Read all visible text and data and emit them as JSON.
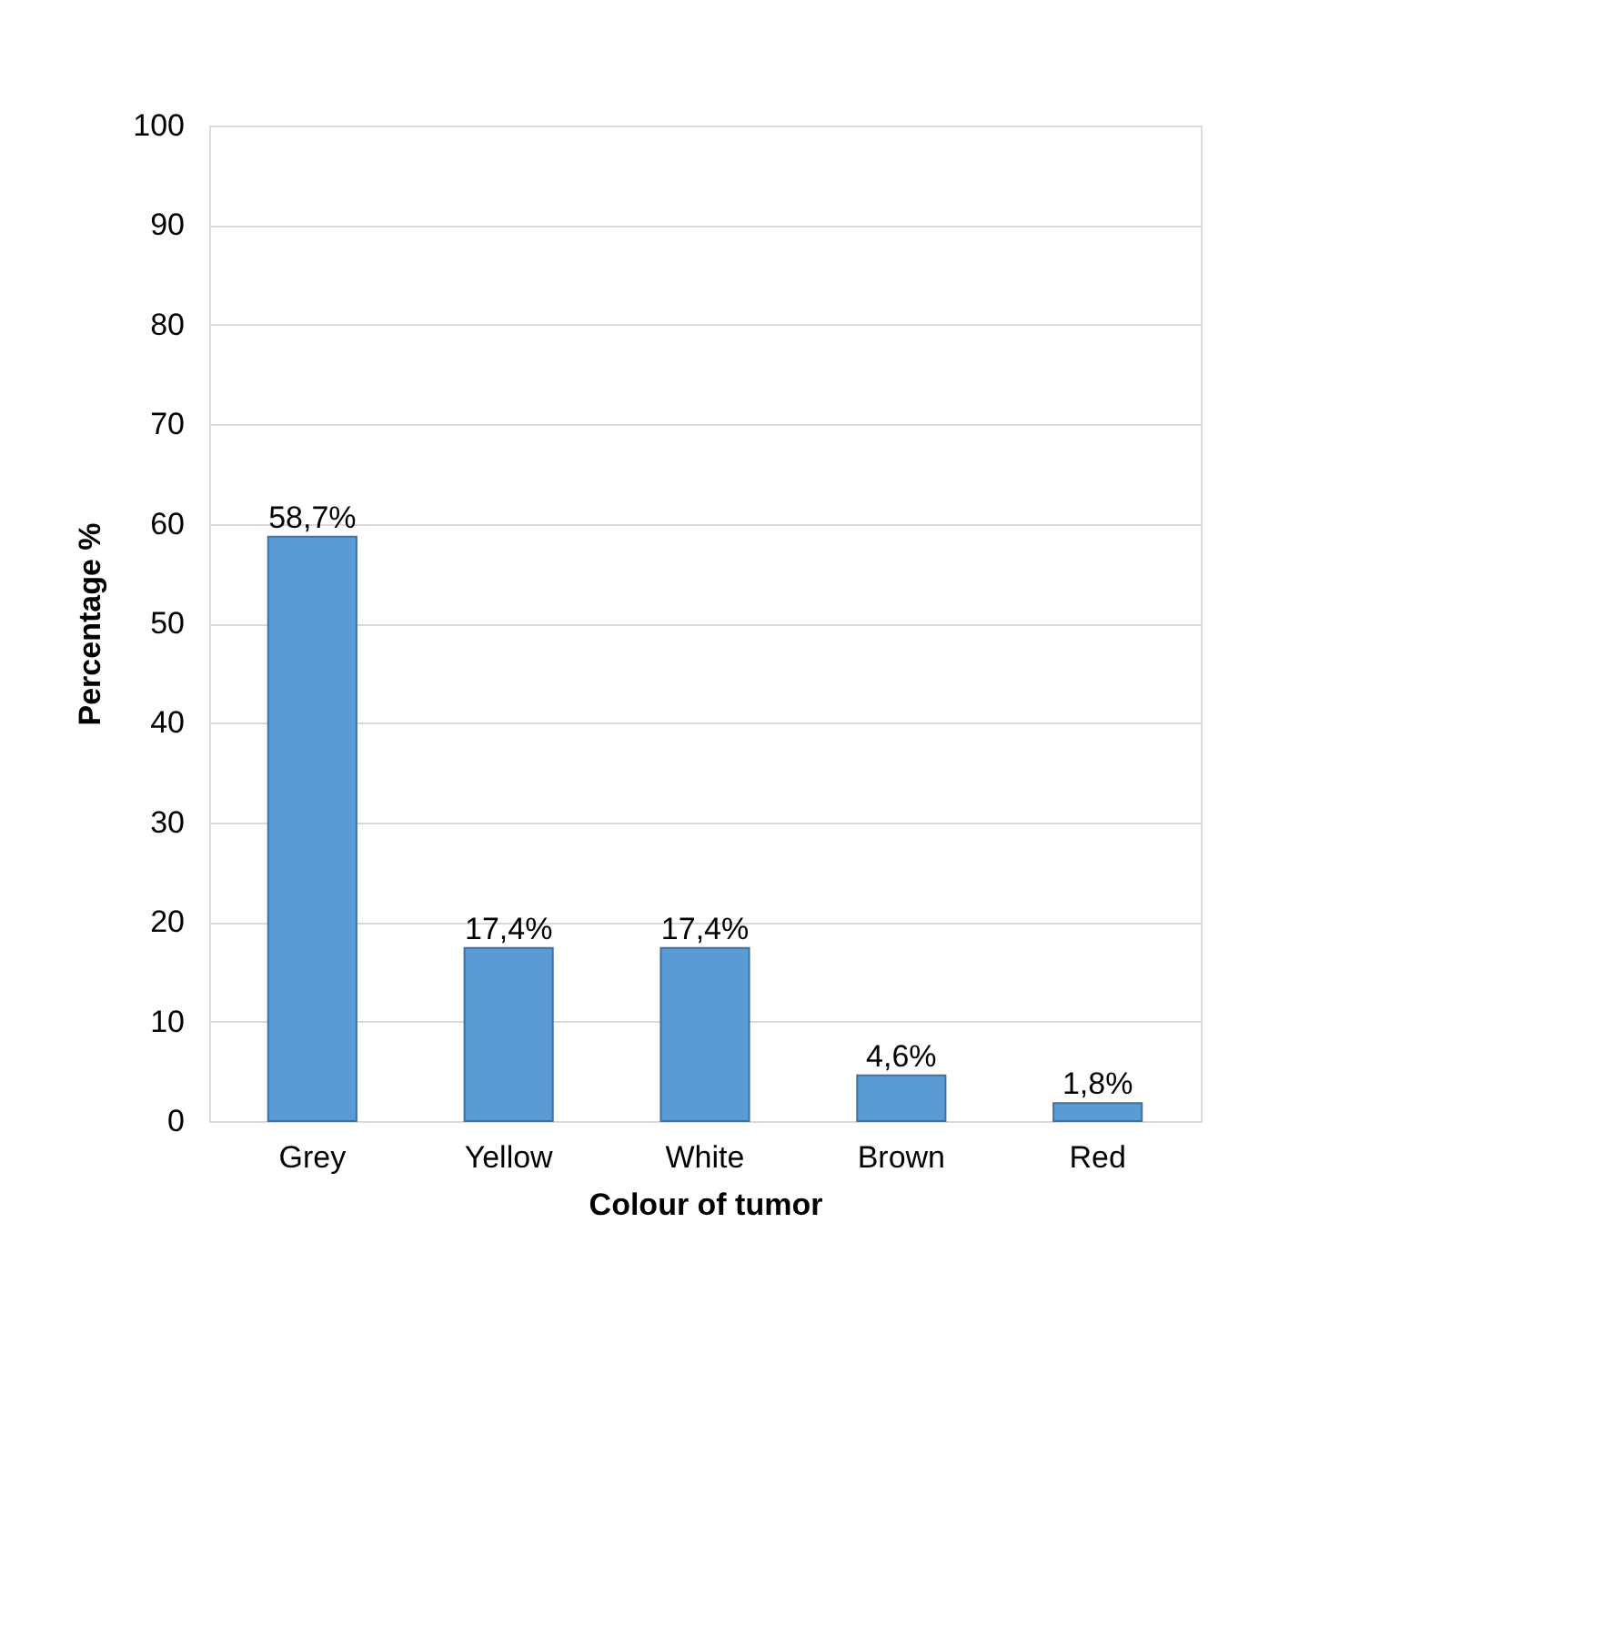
{
  "chart_data": {
    "type": "bar",
    "xlabel": "Colour of tumor",
    "ylabel": "Percentage %",
    "categories": [
      "Grey",
      "Yellow",
      "White",
      "Brown",
      "Red"
    ],
    "values": [
      58.7,
      17.4,
      17.4,
      4.6,
      1.8
    ],
    "value_labels": [
      "58,7%",
      "17,4%",
      "17,4%",
      "4,6%",
      "1,8%"
    ],
    "color": "#5b9bd5",
    "ylim": [
      0,
      100
    ],
    "yticks": [
      0,
      10,
      20,
      30,
      40,
      50,
      60,
      70,
      80,
      90,
      100
    ],
    "grid": "y"
  }
}
